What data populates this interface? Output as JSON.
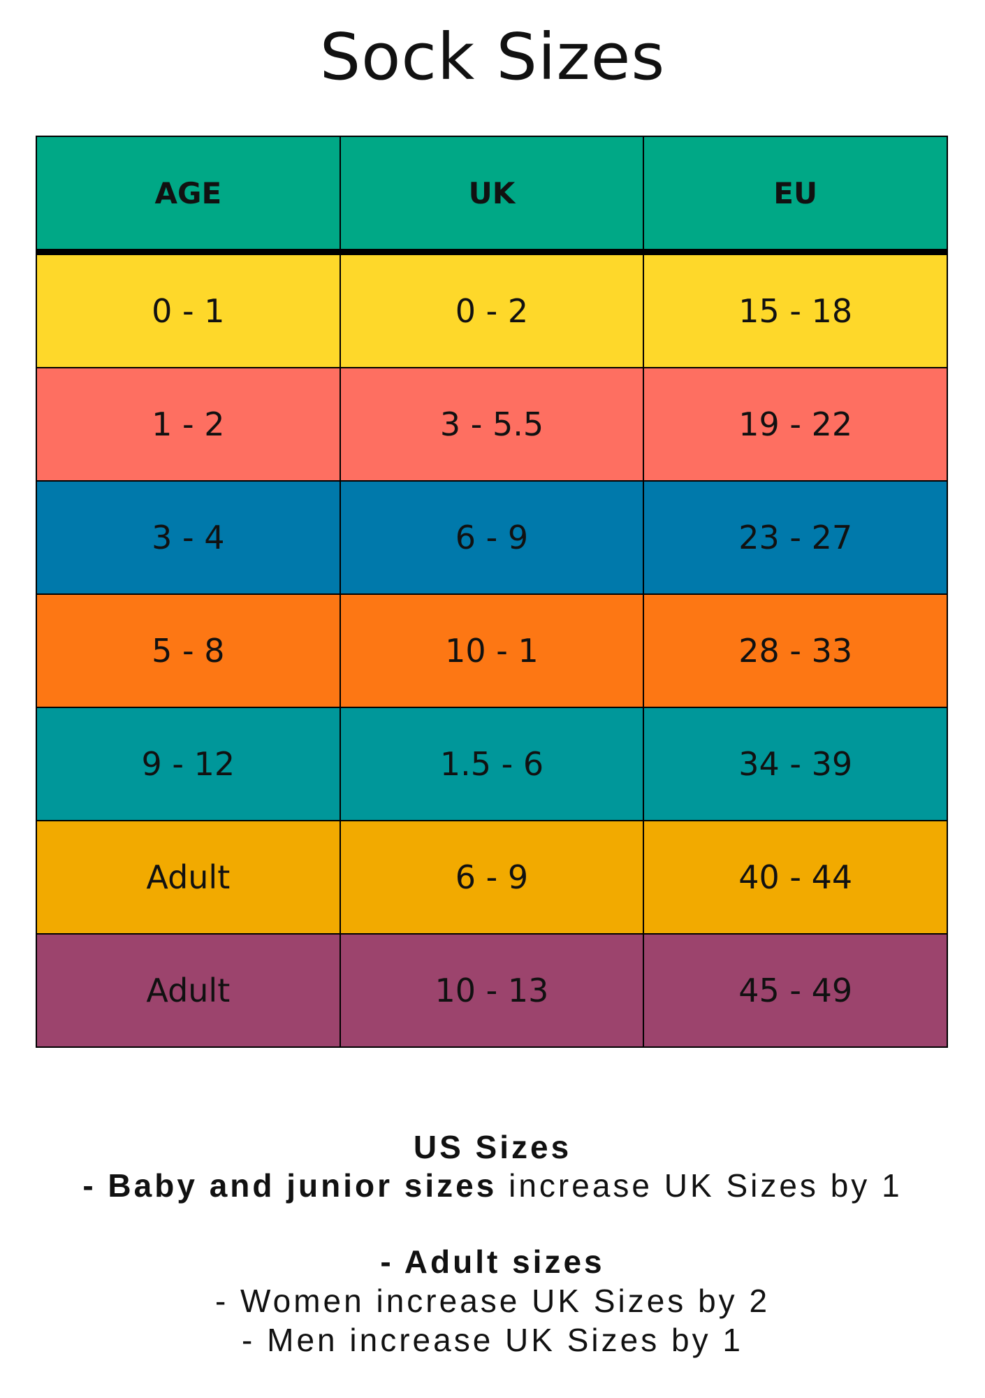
{
  "header": {
    "title": "Sock Sizes"
  },
  "table": {
    "headers": [
      "AGE",
      "UK",
      "EU"
    ],
    "rows": [
      [
        "0 - 1",
        "0 - 2",
        "15 - 18"
      ],
      [
        "1 - 2",
        "3 - 5.5",
        "19 - 22"
      ],
      [
        "3 - 4",
        "6 - 9",
        "23 - 27"
      ],
      [
        "5 - 8",
        "10 - 1",
        "28 - 33"
      ],
      [
        "9 - 12",
        "1.5 - 6",
        "34 - 39"
      ],
      [
        "Adult",
        "6 - 9",
        "40 - 44"
      ],
      [
        "Adult",
        "10 - 13",
        "45 - 49"
      ]
    ]
  },
  "notes": {
    "heading": "US Sizes",
    "baby_bold": "- Baby and junior sizes",
    "baby_rest": "increase UK Sizes by 1",
    "adult_heading": "- Adult sizes",
    "women": "- Women increase UK Sizes by 2",
    "men": "- Men increase UK Sizes by 1"
  }
}
